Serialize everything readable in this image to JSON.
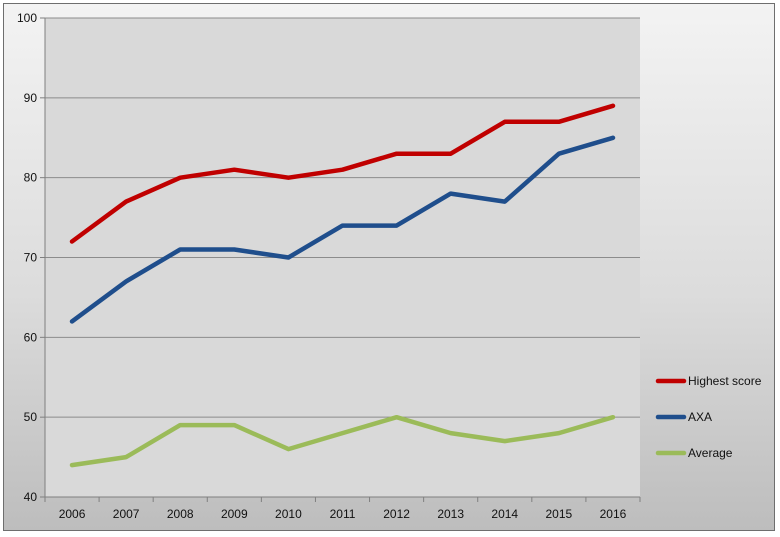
{
  "chart_data": {
    "type": "line",
    "title": "",
    "xlabel": "",
    "ylabel": "",
    "categories": [
      "2006",
      "2007",
      "2008",
      "2009",
      "2010",
      "2011",
      "2012",
      "2013",
      "2014",
      "2015",
      "2016"
    ],
    "ylim": [
      40,
      100
    ],
    "yticks": [
      40,
      50,
      60,
      70,
      80,
      90,
      100
    ],
    "grid": true,
    "legend_position": "right",
    "series": [
      {
        "name": "Highest score",
        "color": "#c00000",
        "values": [
          72,
          77,
          80,
          81,
          80,
          81,
          83,
          83,
          87,
          87,
          89
        ]
      },
      {
        "name": "AXA",
        "color": "#1f4e8c",
        "values": [
          62,
          67,
          71,
          71,
          70,
          74,
          74,
          78,
          77,
          83,
          85
        ]
      },
      {
        "name": "Average",
        "color": "#9bbb59",
        "values": [
          44,
          45,
          49,
          49,
          46,
          48,
          50,
          48,
          47,
          48,
          50
        ]
      }
    ]
  }
}
